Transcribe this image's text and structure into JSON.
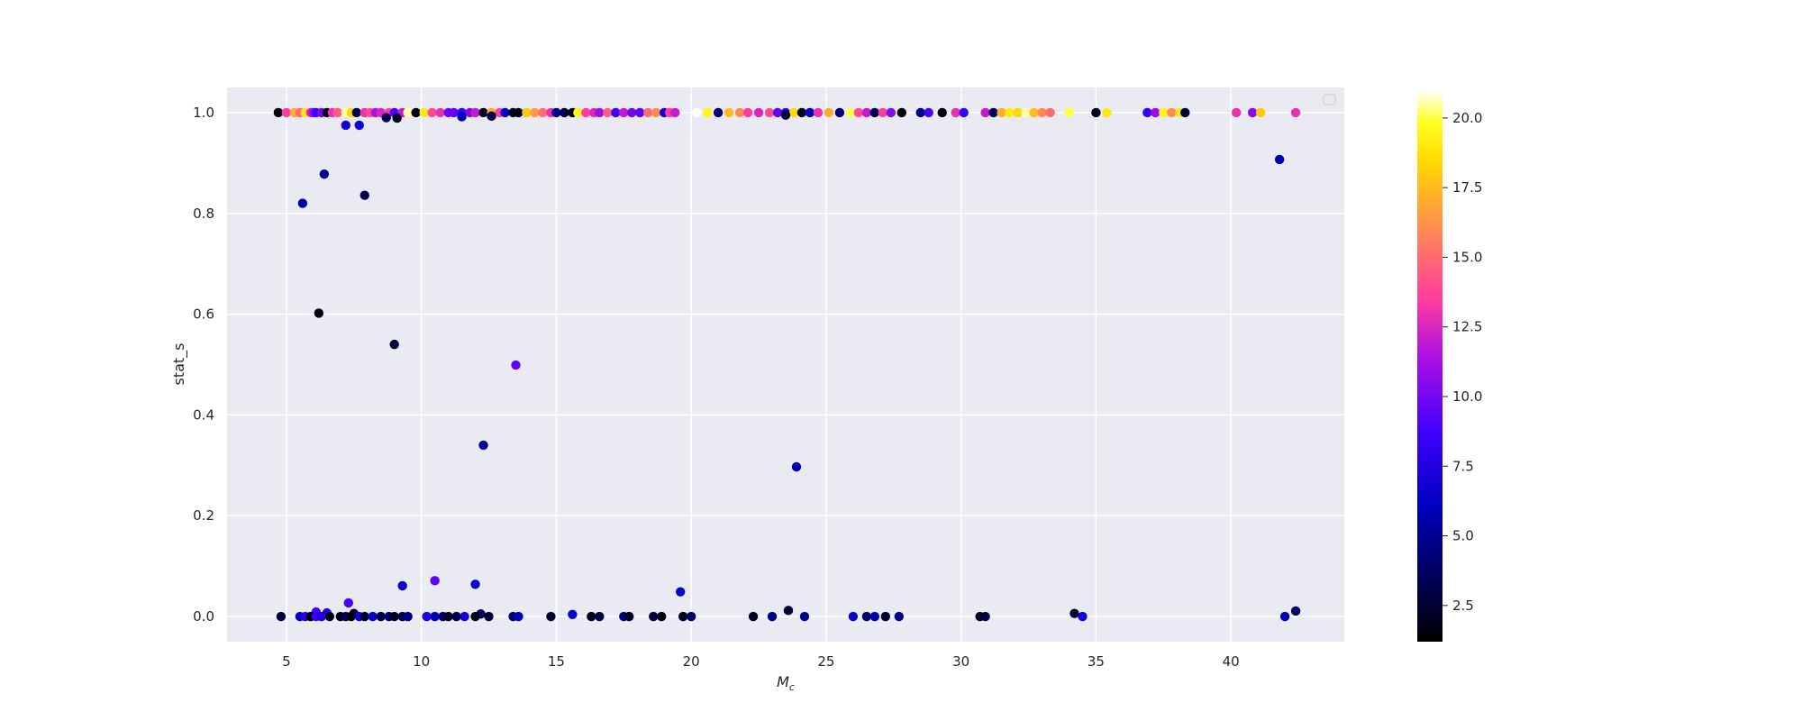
{
  "chart_data": {
    "type": "scatter",
    "title": "",
    "xlabel_base": "M",
    "xlabel_sub": "c",
    "ylabel": "stat_s",
    "xlim": [
      2.8,
      44.2
    ],
    "ylim": [
      -0.05,
      1.05
    ],
    "x_ticks": [
      5,
      10,
      15,
      20,
      25,
      30,
      35,
      40
    ],
    "x_tick_labels": [
      "5",
      "10",
      "15",
      "20",
      "25",
      "30",
      "35",
      "40"
    ],
    "y_ticks": [
      0.0,
      0.2,
      0.4,
      0.6,
      0.8,
      1.0
    ],
    "y_tick_labels": [
      "0.0",
      "0.2",
      "0.4",
      "0.6",
      "0.8",
      "1.0"
    ],
    "grid": true,
    "legend": "top-right (empty)",
    "colormap": "gnuplot2",
    "colorbar": {
      "range": [
        1.2,
        21
      ],
      "ticks": [
        2.5,
        5.0,
        7.5,
        10.0,
        12.5,
        15.0,
        17.5,
        20.0
      ],
      "tick_labels": [
        "2.5",
        "5.0",
        "7.5",
        "10.0",
        "12.5",
        "15.0",
        "17.5",
        "20.0"
      ]
    },
    "colors": {
      "plot_background": "#eaeaf2",
      "grid": "#ffffff",
      "text": "#262626"
    },
    "points": [
      [
        4.7,
        1.0,
        1.5
      ],
      [
        5.0,
        1.0,
        13.5
      ],
      [
        5.3,
        1.0,
        17.0
      ],
      [
        5.5,
        1.0,
        15.0
      ],
      [
        5.7,
        1.0,
        19.0
      ],
      [
        5.9,
        1.0,
        12.5
      ],
      [
        6.0,
        1.0,
        11.0
      ],
      [
        6.1,
        1.0,
        8.5
      ],
      [
        6.3,
        1.0,
        10.0
      ],
      [
        6.5,
        1.0,
        2.0
      ],
      [
        6.7,
        1.0,
        13.0
      ],
      [
        6.9,
        1.0,
        14.5
      ],
      [
        7.2,
        1.0,
        20.5
      ],
      [
        7.4,
        1.0,
        18.5
      ],
      [
        7.6,
        1.0,
        3.0
      ],
      [
        7.9,
        1.0,
        13.0
      ],
      [
        8.1,
        1.0,
        14.0
      ],
      [
        8.3,
        1.0,
        11.5
      ],
      [
        8.5,
        1.0,
        12.5
      ],
      [
        8.8,
        1.0,
        13.5
      ],
      [
        9.0,
        1.0,
        9.0
      ],
      [
        9.3,
        1.0,
        12.0
      ],
      [
        9.5,
        1.0,
        20.5
      ],
      [
        9.8,
        1.0,
        1.5
      ],
      [
        10.1,
        1.0,
        19.0
      ],
      [
        10.4,
        1.0,
        14.0
      ],
      [
        10.7,
        1.0,
        13.0
      ],
      [
        11.0,
        1.0,
        10.0
      ],
      [
        11.2,
        1.0,
        9.5
      ],
      [
        11.5,
        1.0,
        8.5
      ],
      [
        11.8,
        1.0,
        10.5
      ],
      [
        12.0,
        1.0,
        12.0
      ],
      [
        12.3,
        1.0,
        2.0
      ],
      [
        12.6,
        1.0,
        17.0
      ],
      [
        12.9,
        1.0,
        13.5
      ],
      [
        13.1,
        1.0,
        6.5
      ],
      [
        13.4,
        1.0,
        2.0
      ],
      [
        13.6,
        1.0,
        1.5
      ],
      [
        13.9,
        1.0,
        18.0
      ],
      [
        14.2,
        1.0,
        16.5
      ],
      [
        14.5,
        1.0,
        15.0
      ],
      [
        14.8,
        1.0,
        13.0
      ],
      [
        15.0,
        1.0,
        5.0
      ],
      [
        15.3,
        1.0,
        3.0
      ],
      [
        15.6,
        1.0,
        1.5
      ],
      [
        15.8,
        1.0,
        19.5
      ],
      [
        16.1,
        1.0,
        13.5
      ],
      [
        16.4,
        1.0,
        12.5
      ],
      [
        16.6,
        1.0,
        11.0
      ],
      [
        16.9,
        1.0,
        14.5
      ],
      [
        17.2,
        1.0,
        8.5
      ],
      [
        17.5,
        1.0,
        12.0
      ],
      [
        17.8,
        1.0,
        10.0
      ],
      [
        18.1,
        1.0,
        9.5
      ],
      [
        18.4,
        1.0,
        15.0
      ],
      [
        18.7,
        1.0,
        16.0
      ],
      [
        19.0,
        1.0,
        7.0
      ],
      [
        19.2,
        1.0,
        13.5
      ],
      [
        19.4,
        1.0,
        12.0
      ],
      [
        20.2,
        1.0,
        21.0
      ],
      [
        20.6,
        1.0,
        19.5
      ],
      [
        21.0,
        1.0,
        4.0
      ],
      [
        21.4,
        1.0,
        17.5
      ],
      [
        21.8,
        1.0,
        16.0
      ],
      [
        22.1,
        1.0,
        13.5
      ],
      [
        22.5,
        1.0,
        12.5
      ],
      [
        22.9,
        1.0,
        14.0
      ],
      [
        23.2,
        1.0,
        9.5
      ],
      [
        23.5,
        1.0,
        8.0
      ],
      [
        23.8,
        1.0,
        18.5
      ],
      [
        24.1,
        1.0,
        2.0
      ],
      [
        24.4,
        1.0,
        6.0
      ],
      [
        24.7,
        1.0,
        13.0
      ],
      [
        25.1,
        1.0,
        17.0
      ],
      [
        25.5,
        1.0,
        4.5
      ],
      [
        25.9,
        1.0,
        20.0
      ],
      [
        26.2,
        1.0,
        14.0
      ],
      [
        26.5,
        1.0,
        12.0
      ],
      [
        26.8,
        1.0,
        3.0
      ],
      [
        27.1,
        1.0,
        13.5
      ],
      [
        27.4,
        1.0,
        10.5
      ],
      [
        27.8,
        1.0,
        1.5
      ],
      [
        28.5,
        1.0,
        5.0
      ],
      [
        28.8,
        1.0,
        9.0
      ],
      [
        29.3,
        1.0,
        1.5
      ],
      [
        29.8,
        1.0,
        13.0
      ],
      [
        30.1,
        1.0,
        8.5
      ],
      [
        30.9,
        1.0,
        12.0
      ],
      [
        31.2,
        1.0,
        3.5
      ],
      [
        31.5,
        1.0,
        17.0
      ],
      [
        31.8,
        1.0,
        19.0
      ],
      [
        32.1,
        1.0,
        18.5
      ],
      [
        32.4,
        1.0,
        20.5
      ],
      [
        32.7,
        1.0,
        17.5
      ],
      [
        33.0,
        1.0,
        16.0
      ],
      [
        33.3,
        1.0,
        15.0
      ],
      [
        34.0,
        1.0,
        20.0
      ],
      [
        35.0,
        1.0,
        2.0
      ],
      [
        35.4,
        1.0,
        19.0
      ],
      [
        36.9,
        1.0,
        8.5
      ],
      [
        37.2,
        1.0,
        11.0
      ],
      [
        37.5,
        1.0,
        19.5
      ],
      [
        37.8,
        1.0,
        16.0
      ],
      [
        38.1,
        1.0,
        19.0
      ],
      [
        38.3,
        1.0,
        2.5
      ],
      [
        40.2,
        1.0,
        13.0
      ],
      [
        40.8,
        1.0,
        10.5
      ],
      [
        41.1,
        1.0,
        18.0
      ],
      [
        42.4,
        1.0,
        13.0
      ],
      [
        7.2,
        0.975,
        7.0
      ],
      [
        7.7,
        0.975,
        7.0
      ],
      [
        8.7,
        0.99,
        3.5
      ],
      [
        9.1,
        0.989,
        2.0
      ],
      [
        11.5,
        0.992,
        6.0
      ],
      [
        12.6,
        0.993,
        3.0
      ],
      [
        23.5,
        0.995,
        2.5
      ],
      [
        5.6,
        0.82,
        5.5
      ],
      [
        6.4,
        0.878,
        5.0
      ],
      [
        7.9,
        0.836,
        3.0
      ],
      [
        6.2,
        0.602,
        1.5
      ],
      [
        9.0,
        0.54,
        2.5
      ],
      [
        13.5,
        0.499,
        9.5
      ],
      [
        12.3,
        0.34,
        5.0
      ],
      [
        23.9,
        0.297,
        6.0
      ],
      [
        41.8,
        0.907,
        6.0
      ],
      [
        10.5,
        0.071,
        9.5
      ],
      [
        9.3,
        0.061,
        6.5
      ],
      [
        12.0,
        0.064,
        6.5
      ],
      [
        19.6,
        0.049,
        6.5
      ],
      [
        7.3,
        0.027,
        9.0
      ],
      [
        6.1,
        0.009,
        8.5
      ],
      [
        6.5,
        0.007,
        7.0
      ],
      [
        7.5,
        0.006,
        3.0
      ],
      [
        12.2,
        0.005,
        3.5
      ],
      [
        15.6,
        0.004,
        6.5
      ],
      [
        23.6,
        0.012,
        2.5
      ],
      [
        34.2,
        0.006,
        2.5
      ],
      [
        42.4,
        0.011,
        4.0
      ],
      [
        4.8,
        0.0,
        3.0
      ],
      [
        5.5,
        0.0,
        6.0
      ],
      [
        5.7,
        0.0,
        8.0
      ],
      [
        5.9,
        0.0,
        1.5
      ],
      [
        6.1,
        0.0,
        8.5
      ],
      [
        6.3,
        0.0,
        7.5
      ],
      [
        6.6,
        0.0,
        1.5
      ],
      [
        7.0,
        0.0,
        2.0
      ],
      [
        7.2,
        0.0,
        3.5
      ],
      [
        7.4,
        0.0,
        1.5
      ],
      [
        7.7,
        0.0,
        7.0
      ],
      [
        7.9,
        0.0,
        2.5
      ],
      [
        8.2,
        0.0,
        6.5
      ],
      [
        8.5,
        0.0,
        3.0
      ],
      [
        8.8,
        0.0,
        4.0
      ],
      [
        9.0,
        0.0,
        2.0
      ],
      [
        9.3,
        0.0,
        3.0
      ],
      [
        9.5,
        0.0,
        4.5
      ],
      [
        10.2,
        0.0,
        7.5
      ],
      [
        10.5,
        0.0,
        6.0
      ],
      [
        10.8,
        0.0,
        4.0
      ],
      [
        11.0,
        0.0,
        2.0
      ],
      [
        11.3,
        0.0,
        3.0
      ],
      [
        11.6,
        0.0,
        7.0
      ],
      [
        12.0,
        0.0,
        2.0
      ],
      [
        12.5,
        0.0,
        2.5
      ],
      [
        13.4,
        0.0,
        4.0
      ],
      [
        13.6,
        0.0,
        6.0
      ],
      [
        14.8,
        0.0,
        2.5
      ],
      [
        16.3,
        0.0,
        2.0
      ],
      [
        16.6,
        0.0,
        3.0
      ],
      [
        17.5,
        0.0,
        4.5
      ],
      [
        17.7,
        0.0,
        2.0
      ],
      [
        18.6,
        0.0,
        3.0
      ],
      [
        18.9,
        0.0,
        1.5
      ],
      [
        19.7,
        0.0,
        2.0
      ],
      [
        20.0,
        0.0,
        4.0
      ],
      [
        22.3,
        0.0,
        2.0
      ],
      [
        23.0,
        0.0,
        4.5
      ],
      [
        24.2,
        0.0,
        5.0
      ],
      [
        26.0,
        0.0,
        6.5
      ],
      [
        26.5,
        0.0,
        4.0
      ],
      [
        26.8,
        0.0,
        5.5
      ],
      [
        27.2,
        0.0,
        2.5
      ],
      [
        27.7,
        0.0,
        4.5
      ],
      [
        30.7,
        0.0,
        2.0
      ],
      [
        30.9,
        0.0,
        3.0
      ],
      [
        34.5,
        0.0,
        7.0
      ],
      [
        42.0,
        0.0,
        6.0
      ]
    ]
  }
}
